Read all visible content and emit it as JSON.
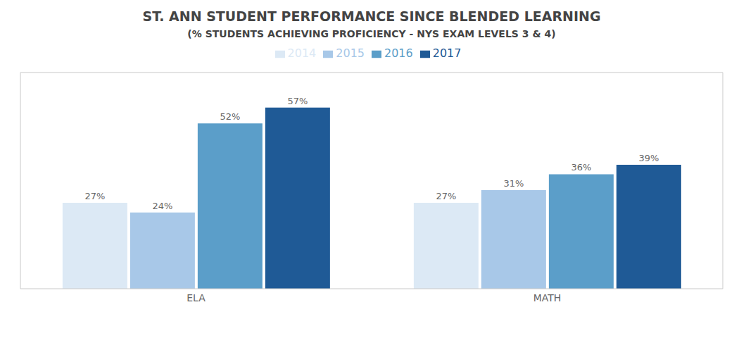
{
  "chart_data": {
    "type": "bar",
    "title": "ST. ANN STUDENT PERFORMANCE SINCE BLENDED LEARNING",
    "subtitle": "(% STUDENTS ACHIEVING PROFICIENCY - NYS EXAM LEVELS 3 & 4)",
    "categories": [
      "ELA",
      "MATH"
    ],
    "series": [
      {
        "name": "2014",
        "color": "#dce9f5",
        "values": [
          27,
          27
        ],
        "value_labels": [
          "27%",
          "27%"
        ]
      },
      {
        "name": "2015",
        "color": "#a8c8e8",
        "values": [
          24,
          31
        ],
        "value_labels": [
          "24%",
          "31%"
        ]
      },
      {
        "name": "2016",
        "color": "#5b9ec9",
        "values": [
          52,
          36
        ],
        "value_labels": [
          "52%",
          "36%"
        ]
      },
      {
        "name": "2017",
        "color": "#1f5a96",
        "values": [
          57,
          39
        ],
        "value_labels": [
          "57%",
          "39%"
        ]
      }
    ],
    "ylim": [
      0,
      68
    ],
    "data_labels": true,
    "tick_labels": "x",
    "grid": false
  }
}
